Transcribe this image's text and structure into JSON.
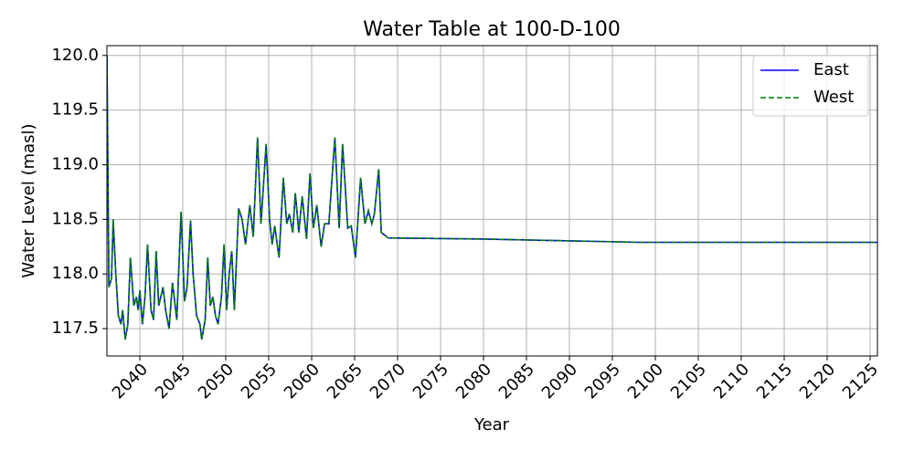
{
  "chart_data": {
    "type": "line",
    "title": "Water Table at 100-D-100",
    "x_label": "Year",
    "y_label": "Water Level (masl)",
    "x": [
      2036.17,
      2036.4,
      2036.7,
      2036.9,
      2037.2,
      2037.5,
      2037.8,
      2038.0,
      2038.3,
      2038.6,
      2038.9,
      2039.3,
      2039.6,
      2039.8,
      2040.0,
      2040.3,
      2040.6,
      2040.9,
      2041.3,
      2041.6,
      2041.9,
      2042.2,
      2042.7,
      2043.0,
      2043.4,
      2043.8,
      2044.3,
      2044.8,
      2045.2,
      2045.5,
      2045.9,
      2046.2,
      2046.6,
      2047.0,
      2047.2,
      2047.6,
      2047.9,
      2048.2,
      2048.5,
      2048.8,
      2049.1,
      2049.5,
      2049.8,
      2050.1,
      2050.4,
      2050.7,
      2051.0,
      2051.5,
      2051.9,
      2052.3,
      2052.8,
      2053.2,
      2053.7,
      2054.1,
      2054.7,
      2055.1,
      2055.4,
      2055.7,
      2056.2,
      2056.7,
      2057.1,
      2057.4,
      2057.8,
      2058.1,
      2058.5,
      2058.9,
      2059.4,
      2059.8,
      2060.2,
      2060.6,
      2061.1,
      2061.5,
      2062.0,
      2062.7,
      2063.2,
      2063.6,
      2064.2,
      2064.6,
      2065.1,
      2065.7,
      2066.2,
      2066.6,
      2067.0,
      2067.3,
      2067.8,
      2068.1,
      2068.9,
      2080.1,
      2098.2,
      2125.85
    ],
    "series": [
      {
        "name": "East",
        "color": "#0000ff",
        "dash": "solid",
        "values": [
          120.0,
          117.88,
          117.96,
          118.5,
          118.0,
          117.62,
          117.54,
          117.67,
          117.4,
          117.54,
          118.15,
          117.71,
          117.79,
          117.67,
          117.85,
          117.54,
          117.79,
          118.27,
          117.67,
          117.58,
          118.21,
          117.71,
          117.88,
          117.67,
          117.5,
          117.92,
          117.58,
          118.57,
          117.75,
          117.88,
          118.49,
          118.0,
          117.62,
          117.54,
          117.4,
          117.58,
          118.15,
          117.71,
          117.79,
          117.62,
          117.54,
          117.79,
          118.27,
          117.67,
          118.0,
          118.21,
          117.67,
          118.6,
          118.5,
          118.27,
          118.63,
          118.34,
          119.25,
          118.46,
          119.19,
          118.5,
          118.27,
          118.44,
          118.15,
          118.88,
          118.46,
          118.55,
          118.38,
          118.74,
          118.38,
          118.71,
          118.32,
          118.92,
          118.42,
          118.63,
          118.25,
          118.46,
          118.46,
          119.25,
          118.42,
          119.19,
          118.42,
          118.44,
          118.15,
          118.88,
          118.46,
          118.58,
          118.46,
          118.55,
          118.96,
          118.38,
          118.33,
          118.32,
          118.29,
          118.29
        ]
      },
      {
        "name": "West",
        "color": "#008000",
        "dash": "dashed",
        "values": [
          120.0,
          117.88,
          117.96,
          118.5,
          118.0,
          117.62,
          117.54,
          117.67,
          117.4,
          117.54,
          118.15,
          117.71,
          117.79,
          117.67,
          117.85,
          117.54,
          117.79,
          118.27,
          117.67,
          117.58,
          118.21,
          117.71,
          117.88,
          117.67,
          117.5,
          117.92,
          117.58,
          118.57,
          117.75,
          117.88,
          118.49,
          118.0,
          117.62,
          117.54,
          117.4,
          117.58,
          118.15,
          117.71,
          117.79,
          117.62,
          117.54,
          117.79,
          118.27,
          117.67,
          118.0,
          118.21,
          117.67,
          118.6,
          118.5,
          118.27,
          118.63,
          118.34,
          119.25,
          118.46,
          119.19,
          118.5,
          118.27,
          118.44,
          118.15,
          118.88,
          118.46,
          118.55,
          118.38,
          118.74,
          118.38,
          118.71,
          118.32,
          118.92,
          118.42,
          118.63,
          118.25,
          118.46,
          118.46,
          119.25,
          118.42,
          119.19,
          118.42,
          118.44,
          118.15,
          118.88,
          118.46,
          118.58,
          118.46,
          118.55,
          118.96,
          118.38,
          118.33,
          118.32,
          118.29,
          118.29
        ]
      }
    ],
    "xlim": [
      2036.17,
      2125.85
    ],
    "xticks": [
      2040,
      2045,
      2050,
      2055,
      2060,
      2065,
      2070,
      2075,
      2080,
      2085,
      2090,
      2095,
      2100,
      2105,
      2110,
      2115,
      2120,
      2125
    ],
    "ylim": [
      117.25,
      120.09
    ],
    "yticks": [
      117.5,
      {
        "value": 118,
        "label": "118.0"
      },
      118.5,
      {
        "value": 119,
        "label": "119.0"
      },
      119.5,
      {
        "value": 120,
        "label": "120.0"
      }
    ],
    "grid": true,
    "legend": "upper right"
  }
}
